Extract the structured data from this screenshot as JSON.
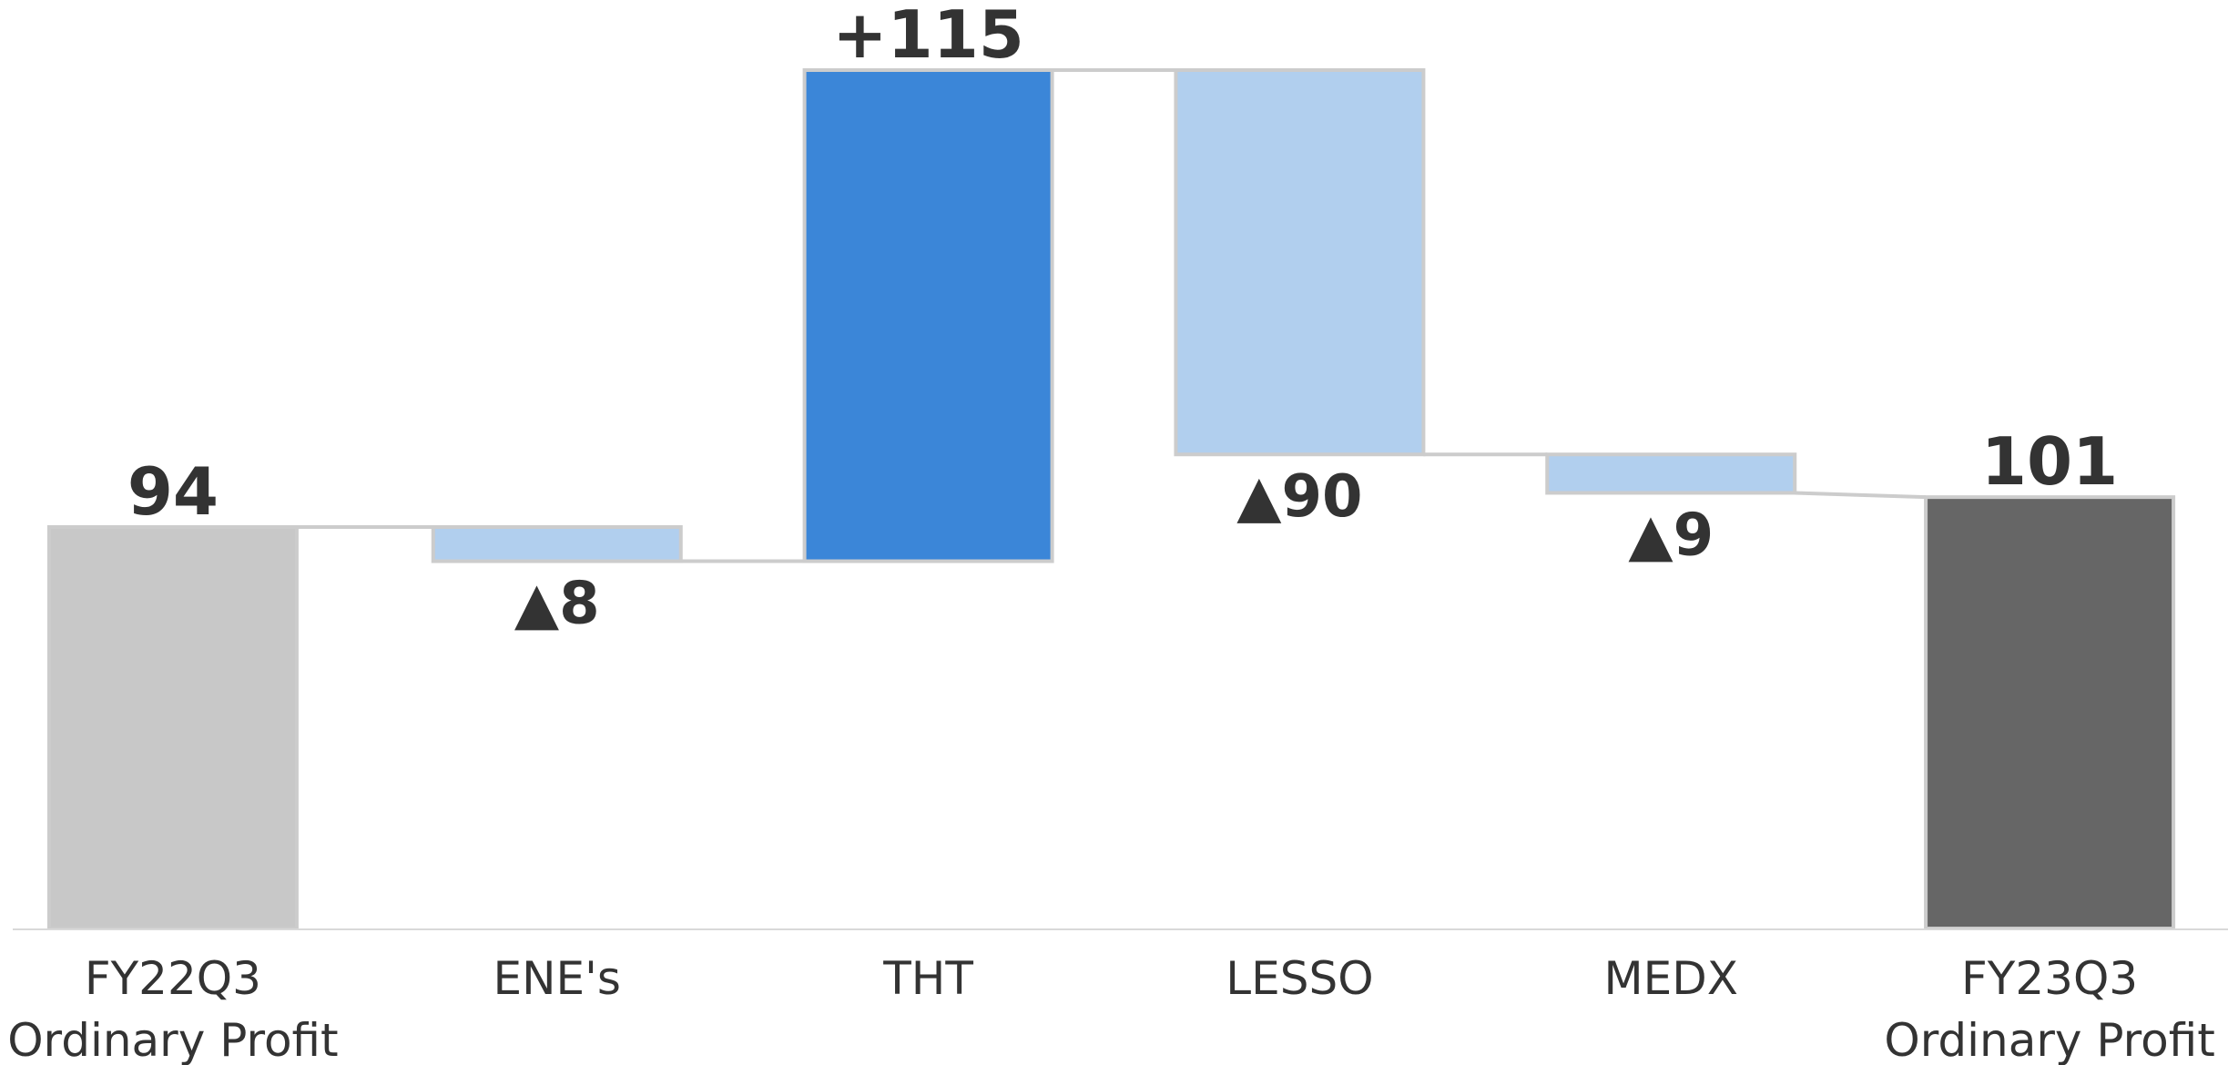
{
  "chart_data": {
    "type": "bar",
    "subtype": "waterfall",
    "categories": [
      [
        "FY22Q3",
        "Ordinary Profit"
      ],
      [
        "ENE's"
      ],
      [
        "THT"
      ],
      [
        "LESSO"
      ],
      [
        "MEDX"
      ],
      [
        "FY23Q3",
        "Ordinary Profit"
      ]
    ],
    "steps": [
      {
        "kind": "total",
        "value": 94,
        "label": "94"
      },
      {
        "kind": "delta",
        "value": -8,
        "label": "▲8"
      },
      {
        "kind": "delta",
        "value": 115,
        "label": "+115"
      },
      {
        "kind": "delta",
        "value": -90,
        "label": "▲90"
      },
      {
        "kind": "delta",
        "value": -9,
        "label": "▲9"
      },
      {
        "kind": "total",
        "value": 101,
        "label": "101"
      }
    ],
    "ylim": [
      0,
      201
    ],
    "grid": false,
    "legend": "none",
    "colors": {
      "start_total": "#c8c8c8",
      "end_total": "#666666",
      "increase": "#3b86d8",
      "decrease": "#b1cfee",
      "bar_border": "#cccccc",
      "connector": "#cccccc",
      "baseline": "#d9d9d9",
      "text": "#333333"
    }
  }
}
